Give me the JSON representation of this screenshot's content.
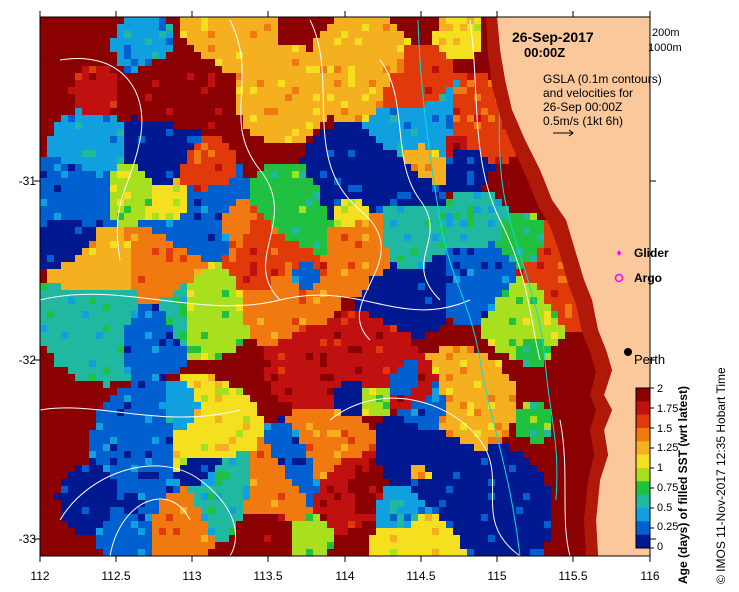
{
  "map": {
    "date": "26-Sep-2017",
    "time": "00:00Z",
    "scale_legend": [
      "200m",
      "1000m"
    ],
    "velocity_note": [
      "GSLA (0.1m contours)",
      "and velocities for",
      "26-Sep 00:00Z",
      "0.5m/s (1kt 6h)"
    ],
    "legend_items": [
      {
        "label": "Glider",
        "color": "#ff00ff"
      },
      {
        "label": "Argo",
        "color": "#ff00ff"
      }
    ],
    "city_label": "Perth",
    "x_ticks": [
      "112",
      "112.5",
      "113",
      "113.5",
      "114",
      "114.5",
      "115",
      "115.5",
      "116"
    ],
    "y_ticks": [
      "-31",
      "-32",
      "-33"
    ],
    "colorbar": {
      "title": "Age (days) of filled SST (wrt latest)",
      "ticks": [
        "2",
        "1.75",
        "1.5",
        "1.25",
        "1",
        "0.75",
        "0.5",
        "0.25",
        "0"
      ],
      "colors": [
        "#8b0000",
        "#c01010",
        "#e03a0a",
        "#f07a10",
        "#f5b020",
        "#f5e020",
        "#a8e020",
        "#20c040",
        "#20b8a0",
        "#10a0e0",
        "#0060d0",
        "#001890"
      ]
    },
    "credit": "© IMOS 11-Nov-2017 12:35 Hobart Time",
    "colors": {
      "land": "#fac89a",
      "contour": "#ffffff",
      "bathy_200": "#00e0e0"
    }
  }
}
